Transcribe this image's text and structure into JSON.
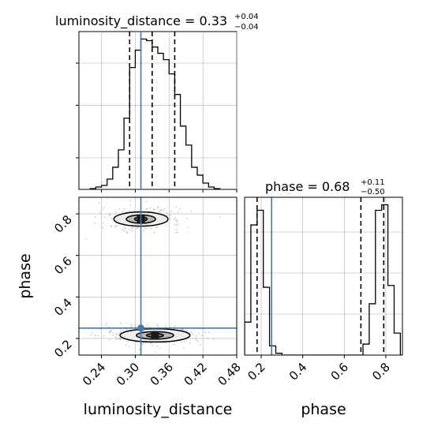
{
  "chart_data": {
    "type": "corner",
    "parameters": [
      "luminosity_distance",
      "phase"
    ],
    "truths": {
      "luminosity_distance": 0.31,
      "phase": 0.25
    },
    "marginals": [
      {
        "parameter": "luminosity_distance",
        "title": {
          "name": "luminosity_distance",
          "value": "0.33",
          "plus": "+0.04",
          "minus": "−0.04"
        },
        "quantiles": [
          0.29,
          0.33,
          0.37
        ],
        "xlim": [
          0.2,
          0.48
        ],
        "bins": [
          0.22,
          0.23,
          0.24,
          0.25,
          0.26,
          0.27,
          0.28,
          0.29,
          0.3,
          0.31,
          0.32,
          0.33,
          0.34,
          0.35,
          0.36,
          0.37,
          0.38,
          0.39,
          0.4,
          0.41,
          0.42,
          0.43,
          0.44
        ],
        "counts": [
          0.5,
          1.5,
          2.5,
          6.5,
          14,
          25,
          45,
          77,
          88,
          95,
          94,
          90,
          86,
          82,
          73,
          60,
          40,
          28,
          14,
          9,
          4,
          1.5,
          0.5
        ]
      },
      {
        "parameter": "phase",
        "title": {
          "name": "phase",
          "value": "0.68",
          "plus": "+0.11",
          "minus": "−0.50"
        },
        "quantiles": [
          0.18,
          0.68,
          0.79
        ],
        "xlim": [
          0.12,
          0.88
        ],
        "bins": [
          0.12,
          0.15,
          0.18,
          0.21,
          0.24,
          0.27,
          0.3,
          0.33,
          0.36,
          0.39,
          0.42,
          0.45,
          0.48,
          0.51,
          0.54,
          0.57,
          0.6,
          0.63,
          0.66,
          0.69,
          0.72,
          0.75,
          0.78,
          0.81,
          0.84,
          0.87,
          0.88
        ],
        "counts": [
          18,
          71,
          79,
          37,
          5,
          1,
          0,
          0,
          0,
          0,
          0,
          0,
          0,
          0,
          0,
          0,
          0,
          0,
          0,
          6,
          28,
          79,
          82,
          38,
          12,
          0
        ]
      }
    ],
    "joint": {
      "x": "luminosity_distance",
      "y": "phase",
      "xlim": [
        0.2,
        0.48
      ],
      "ylim": [
        0.12,
        0.88
      ],
      "modes": [
        {
          "x_center": 0.31,
          "y_center": 0.775,
          "levels": [
            {
              "rx": 0.048,
              "ry": 0.085
            },
            {
              "rx": 0.026,
              "ry": 0.05
            },
            {
              "rx": 0.011,
              "ry": 0.025
            }
          ]
        },
        {
          "x_center": 0.335,
          "y_center": 0.215,
          "levels": [
            {
              "rx": 0.062,
              "ry": 0.08
            },
            {
              "rx": 0.033,
              "ry": 0.045
            },
            {
              "rx": 0.015,
              "ry": 0.022
            }
          ]
        }
      ]
    },
    "x_ticks": {
      "luminosity_distance": [
        "0.24",
        "0.30",
        "0.36",
        "0.42",
        "0.48"
      ],
      "phase": [
        "0.2",
        "0.4",
        "0.6",
        "0.8"
      ]
    },
    "y_ticks": {
      "phase": [
        "0.2",
        "0.4",
        "0.6",
        "0.8"
      ]
    },
    "xlabels": [
      "luminosity_distance",
      "phase"
    ],
    "ylabel": "phase",
    "grid": true,
    "colors": {
      "truth": "#4477aa",
      "hist": "#000000",
      "quantile": "#000000",
      "grid": "#b0b0b0"
    }
  }
}
